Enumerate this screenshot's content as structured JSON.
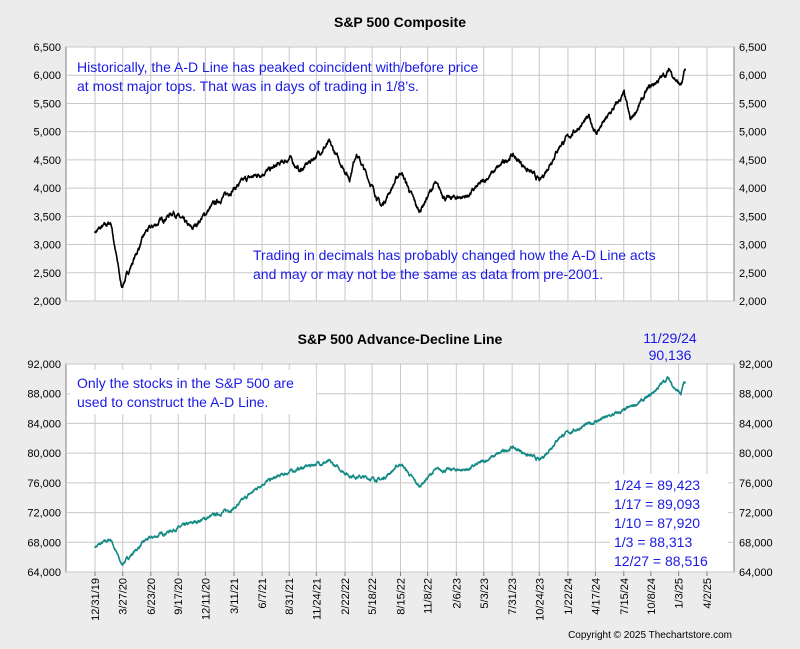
{
  "chart_data": [
    {
      "type": "line",
      "title": "S&P 500 Composite",
      "ylim": [
        2000,
        6500
      ],
      "yticks": [
        2000,
        2500,
        3000,
        3500,
        4000,
        4500,
        5000,
        5500,
        6000,
        6500
      ],
      "ytick_labels": [
        "2,000",
        "2,500",
        "3,000",
        "3,500",
        "4,000",
        "4,500",
        "5,000",
        "5,500",
        "6,000",
        "6,500"
      ],
      "grid": true,
      "line_color": "#000000",
      "annotations": [
        "Historically, the A-D Line has peaked coincident with/before price",
        "at most major tops.  That was in days of trading in 1/8’s.",
        "Trading in decimals has probably changed how the A-D Line acts",
        "and may or may not be the same as data from pre-2001."
      ],
      "series": [
        {
          "x": [
            "2019-12-31",
            "2020-02-19",
            "2020-03-23",
            "2020-06-08",
            "2020-09-02",
            "2020-10-30",
            "2021-01-04",
            "2021-04-15",
            "2021-07-01",
            "2021-09-02",
            "2021-10-04",
            "2022-01-03",
            "2022-03-08",
            "2022-03-29",
            "2022-06-16",
            "2022-08-16",
            "2022-10-12",
            "2022-12-01",
            "2023-01-05",
            "2023-03-13",
            "2023-07-31",
            "2023-10-27",
            "2023-12-29",
            "2024-03-28",
            "2024-04-19",
            "2024-07-16",
            "2024-08-05",
            "2024-09-30",
            "2024-11-29",
            "2024-12-06",
            "2025-01-03",
            "2025-01-13",
            "2025-01-24"
          ],
          "y": [
            3230,
            3390,
            2240,
            3230,
            3580,
            3270,
            3700,
            4150,
            4320,
            4530,
            4300,
            4800,
            4170,
            4630,
            3670,
            4300,
            3580,
            4080,
            3810,
            3860,
            4590,
            4120,
            4770,
            5250,
            4970,
            5670,
            5190,
            5760,
            6050,
            6090,
            5850,
            5840,
            6100
          ]
        }
      ]
    },
    {
      "type": "line",
      "title": "S&P 500 Advance-Decline Line",
      "ylim": [
        64000,
        92000
      ],
      "yticks": [
        64000,
        68000,
        72000,
        76000,
        80000,
        84000,
        88000,
        92000
      ],
      "ytick_labels": [
        "64,000",
        "68,000",
        "72,000",
        "76,000",
        "80,000",
        "84,000",
        "88,000",
        "92,000"
      ],
      "grid": true,
      "line_color": "#148a85",
      "x_tick_labels": [
        "12/31/19",
        "3/27/20",
        "6/23/20",
        "9/17/20",
        "12/11/20",
        "3/11/21",
        "6/7/21",
        "8/31/21",
        "11/24/21",
        "2/22/22",
        "5/18/22",
        "8/15/22",
        "11/8/22",
        "2/6/23",
        "5/3/23",
        "7/31/23",
        "10/24/23",
        "1/22/24",
        "4/17/24",
        "7/15/24",
        "10/8/24",
        "1/3/25",
        "4/2/25"
      ],
      "x_tick_dates": [
        "2019-12-31",
        "2020-03-27",
        "2020-06-23",
        "2020-09-17",
        "2020-12-11",
        "2021-03-11",
        "2021-06-07",
        "2021-08-31",
        "2021-11-24",
        "2022-02-22",
        "2022-05-18",
        "2022-08-15",
        "2022-11-08",
        "2023-02-06",
        "2023-05-03",
        "2023-07-31",
        "2023-10-24",
        "2024-01-22",
        "2024-04-17",
        "2024-07-15",
        "2024-10-08",
        "2025-01-03",
        "2025-04-02"
      ],
      "annotations": [
        "Only the stocks in the S&P 500 are",
        "used to construct the A-D Line.",
        "11/29/24",
        "90,136"
      ],
      "data_labels": [
        "1/24 = 89,423",
        "1/17 = 89,093",
        "1/10 = 87,920",
        "1/3 = 88,313",
        "12/27 = 88,516"
      ],
      "series": [
        {
          "x": [
            "2019-12-31",
            "2020-02-19",
            "2020-03-23",
            "2020-06-08",
            "2020-09-02",
            "2020-12-31",
            "2021-03-11",
            "2021-06-07",
            "2021-09-02",
            "2021-11-24",
            "2022-01-03",
            "2022-03-08",
            "2022-06-16",
            "2022-08-16",
            "2022-10-12",
            "2022-12-01",
            "2023-03-13",
            "2023-07-31",
            "2023-10-27",
            "2023-12-29",
            "2024-04-19",
            "2024-07-16",
            "2024-09-30",
            "2024-11-29",
            "2024-12-27",
            "2025-01-03",
            "2025-01-10",
            "2025-01-17",
            "2025-01-24"
          ],
          "y": [
            67400,
            68400,
            65000,
            68300,
            69700,
            71500,
            72600,
            75900,
            77500,
            78600,
            78800,
            77000,
            76400,
            78600,
            75500,
            77700,
            77800,
            80800,
            79000,
            82300,
            84300,
            85700,
            87500,
            90136,
            88516,
            88313,
            87920,
            89093,
            89423
          ]
        }
      ]
    }
  ],
  "copyright": "Copyright © 2025 Thechartstore.com"
}
